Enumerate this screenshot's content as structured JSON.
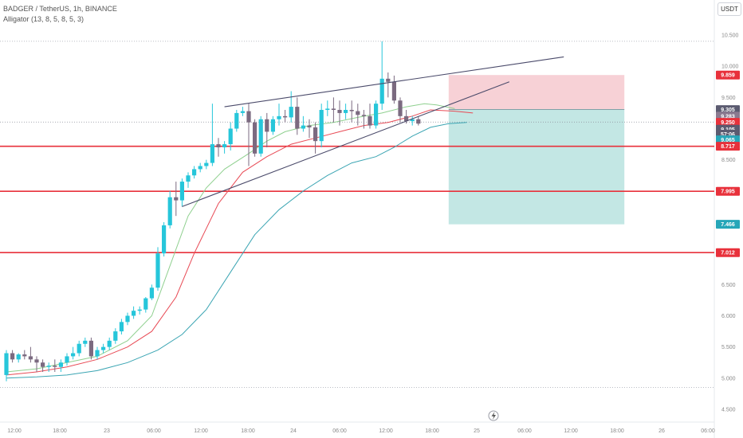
{
  "header": {
    "symbol_line": "BADGER / TetherUS, 1h, BINANCE",
    "indicator_line": "Alligator (13, 8, 5, 8, 5, 3)",
    "currency_button": "USDT"
  },
  "colors": {
    "up": "#26c6da",
    "down": "#7b6a80",
    "level_line": "#e8313b",
    "trend_line": "#4a4a6a",
    "jaw": "#3ba5b3",
    "teeth": "#e84a55",
    "lips": "#8fd08f",
    "stop_zone": "#f6c9cf",
    "target_zone": "#b9e3df"
  },
  "chart_data": {
    "type": "candlestick",
    "title": "BADGER / TetherUS, 1h, BINANCE",
    "y_axis_range": [
      4.5,
      10.5
    ],
    "y_ticks": [
      "10.500",
      "10.000",
      "9.500",
      "9.000",
      "8.500",
      "8.000",
      "7.500",
      "7.000",
      "6.500",
      "6.000",
      "5.500",
      "5.000",
      "4.500"
    ],
    "x_ticks": [
      "12:00",
      "18:00",
      "23",
      "06:00",
      "12:00",
      "18:00",
      "24",
      "06:00",
      "12:00",
      "18:00",
      "25",
      "06:00",
      "12:00",
      "18:00",
      "26",
      "06:00"
    ],
    "candles": [
      [
        5.05,
        5.45,
        5.4,
        4.95
      ],
      [
        5.4,
        5.45,
        5.3,
        5.25
      ],
      [
        5.3,
        5.4,
        5.38,
        5.25
      ],
      [
        5.38,
        5.45,
        5.35,
        5.3
      ],
      [
        5.35,
        5.5,
        5.3,
        5.25
      ],
      [
        5.3,
        5.35,
        5.25,
        5.1
      ],
      [
        5.25,
        5.3,
        5.18,
        5.1
      ],
      [
        5.18,
        5.25,
        5.2,
        5.1
      ],
      [
        5.2,
        5.3,
        5.18,
        5.1
      ],
      [
        5.18,
        5.3,
        5.25,
        5.1
      ],
      [
        5.25,
        5.4,
        5.35,
        5.2
      ],
      [
        5.35,
        5.5,
        5.4,
        5.3
      ],
      [
        5.4,
        5.6,
        5.55,
        5.35
      ],
      [
        5.55,
        5.65,
        5.6,
        5.5
      ],
      [
        5.6,
        5.65,
        5.35,
        5.3
      ],
      [
        5.35,
        5.5,
        5.45,
        5.3
      ],
      [
        5.45,
        5.55,
        5.5,
        5.4
      ],
      [
        5.5,
        5.65,
        5.6,
        5.45
      ],
      [
        5.6,
        5.8,
        5.75,
        5.55
      ],
      [
        5.75,
        5.95,
        5.9,
        5.7
      ],
      [
        5.9,
        6.05,
        6.0,
        5.85
      ],
      [
        6.0,
        6.15,
        6.08,
        5.95
      ],
      [
        6.08,
        6.15,
        6.1,
        6.02
      ],
      [
        6.1,
        6.3,
        6.28,
        6.05
      ],
      [
        6.28,
        6.5,
        6.45,
        6.25
      ],
      [
        6.45,
        7.1,
        7.0,
        6.4
      ],
      [
        7.0,
        7.5,
        7.45,
        6.95
      ],
      [
        7.45,
        8.0,
        7.9,
        7.4
      ],
      [
        7.9,
        8.15,
        7.85,
        7.6
      ],
      [
        7.85,
        8.2,
        8.15,
        7.75
      ],
      [
        8.15,
        8.3,
        8.25,
        8.05
      ],
      [
        8.25,
        8.4,
        8.35,
        8.2
      ],
      [
        8.35,
        8.45,
        8.4,
        8.3
      ],
      [
        8.4,
        8.5,
        8.45,
        8.35
      ],
      [
        8.45,
        9.4,
        8.75,
        8.4
      ],
      [
        8.75,
        8.85,
        8.7,
        8.55
      ],
      [
        8.7,
        8.8,
        8.75,
        8.6
      ],
      [
        8.75,
        9.1,
        9.0,
        8.65
      ],
      [
        9.0,
        9.3,
        9.25,
        8.95
      ],
      [
        9.25,
        9.35,
        9.28,
        9.2
      ],
      [
        9.28,
        9.4,
        9.1,
        8.4
      ],
      [
        9.1,
        9.15,
        8.6,
        8.55
      ],
      [
        8.6,
        9.2,
        9.15,
        8.55
      ],
      [
        9.15,
        9.25,
        8.95,
        8.7
      ],
      [
        8.95,
        9.2,
        9.15,
        8.9
      ],
      [
        9.15,
        9.4,
        9.2,
        9.05
      ],
      [
        9.2,
        9.3,
        9.18,
        9.1
      ],
      [
        9.18,
        9.6,
        9.35,
        9.1
      ],
      [
        9.35,
        9.5,
        9.0,
        8.9
      ],
      [
        9.0,
        9.2,
        9.05,
        8.95
      ],
      [
        9.05,
        9.15,
        9.02,
        8.85
      ],
      [
        9.02,
        9.1,
        8.8,
        8.6
      ],
      [
        8.8,
        9.4,
        9.3,
        8.7
      ],
      [
        9.3,
        9.45,
        9.32,
        9.2
      ],
      [
        9.32,
        9.5,
        9.3,
        9.1
      ],
      [
        9.3,
        9.45,
        9.25,
        9.05
      ],
      [
        9.25,
        9.4,
        9.3,
        9.15
      ],
      [
        9.3,
        9.45,
        9.28,
        9.1
      ],
      [
        9.28,
        9.4,
        9.22,
        9.05
      ],
      [
        9.22,
        9.3,
        9.2,
        9.0
      ],
      [
        9.2,
        9.4,
        9.05,
        9.0
      ],
      [
        9.05,
        9.45,
        9.4,
        9.0
      ],
      [
        9.4,
        10.4,
        9.8,
        9.3
      ],
      [
        9.8,
        9.9,
        9.75,
        9.5
      ],
      [
        9.75,
        9.85,
        9.45,
        9.4
      ],
      [
        9.45,
        9.5,
        9.2,
        9.1
      ],
      [
        9.2,
        9.3,
        9.12,
        9.08
      ],
      [
        9.12,
        9.2,
        9.15,
        9.05
      ],
      [
        9.15,
        9.2,
        9.08,
        9.05
      ]
    ],
    "alligator": {
      "jaw": [
        [
          0,
          5.0
        ],
        [
          5,
          5.02
        ],
        [
          10,
          5.05
        ],
        [
          15,
          5.12
        ],
        [
          20,
          5.25
        ],
        [
          25,
          5.45
        ],
        [
          29,
          5.7
        ],
        [
          33,
          6.1
        ],
        [
          37,
          6.7
        ],
        [
          41,
          7.3
        ],
        [
          45,
          7.7
        ],
        [
          49,
          8.0
        ],
        [
          53,
          8.25
        ],
        [
          57,
          8.45
        ],
        [
          61,
          8.55
        ],
        [
          64,
          8.7
        ],
        [
          67,
          8.88
        ],
        [
          70,
          9.02
        ],
        [
          73,
          9.08
        ],
        [
          76,
          9.1
        ]
      ],
      "teeth": [
        [
          0,
          5.05
        ],
        [
          5,
          5.1
        ],
        [
          10,
          5.18
        ],
        [
          15,
          5.3
        ],
        [
          20,
          5.5
        ],
        [
          24,
          5.75
        ],
        [
          28,
          6.3
        ],
        [
          31,
          7.0
        ],
        [
          35,
          7.8
        ],
        [
          39,
          8.3
        ],
        [
          43,
          8.55
        ],
        [
          47,
          8.75
        ],
        [
          51,
          8.85
        ],
        [
          55,
          8.95
        ],
        [
          59,
          9.05
        ],
        [
          63,
          9.1
        ],
        [
          67,
          9.2
        ],
        [
          70,
          9.3
        ],
        [
          74,
          9.28
        ],
        [
          77,
          9.25
        ]
      ],
      "lips": [
        [
          0,
          5.1
        ],
        [
          5,
          5.15
        ],
        [
          10,
          5.25
        ],
        [
          15,
          5.35
        ],
        [
          20,
          5.6
        ],
        [
          24,
          6.0
        ],
        [
          27,
          6.8
        ],
        [
          30,
          7.6
        ],
        [
          33,
          8.05
        ],
        [
          36,
          8.35
        ],
        [
          40,
          8.6
        ],
        [
          43,
          8.8
        ],
        [
          46,
          8.95
        ],
        [
          50,
          9.05
        ],
        [
          54,
          9.1
        ],
        [
          58,
          9.18
        ],
        [
          62,
          9.25
        ],
        [
          66,
          9.35
        ],
        [
          69,
          9.4
        ],
        [
          71,
          9.38
        ],
        [
          74,
          9.32
        ]
      ]
    },
    "horizontal_levels": [
      8.717,
      7.995,
      7.012
    ],
    "trend_lines": [
      {
        "from": [
          36,
          9.35
        ],
        "to": [
          92,
          10.15
        ]
      },
      {
        "from": [
          29,
          7.75
        ],
        "to": [
          83,
          9.75
        ]
      }
    ],
    "position": {
      "entry": 9.305,
      "stop": 9.859,
      "target": 7.466,
      "start_bar": 73,
      "end_bar": 102
    },
    "current_price": 9.105,
    "upper_dotted_level": 10.4,
    "lower_dotted_level": 4.85,
    "price_tags": [
      {
        "label": "9.859",
        "value": 9.859,
        "bg": "#e8313b",
        "fg": "#ffffff"
      },
      {
        "label": "9.305",
        "value": 9.305,
        "bg": "#5b5b70",
        "fg": "#ffffff"
      },
      {
        "label": "9.283",
        "value": 9.2,
        "bg": "#8a7a90",
        "fg": "#ffffff"
      },
      {
        "label": "9.250",
        "value": 9.1,
        "bg": "#e8313b",
        "fg": "#ffffff"
      },
      {
        "label": "9.105",
        "value": 8.99,
        "bg": "#5b5b70",
        "fg": "#ffffff"
      },
      {
        "label": "57:06",
        "value": 8.91,
        "bg": "#5b5b70",
        "fg": "#ffffff"
      },
      {
        "label": "9.065",
        "value": 8.82,
        "bg": "#26a6b8",
        "fg": "#ffffff"
      },
      {
        "label": "8.717",
        "value": 8.717,
        "bg": "#e8313b",
        "fg": "#ffffff"
      },
      {
        "label": "7.995",
        "value": 7.995,
        "bg": "#e8313b",
        "fg": "#ffffff"
      },
      {
        "label": "7.466",
        "value": 7.466,
        "bg": "#26a6b8",
        "fg": "#ffffff"
      },
      {
        "label": "7.012",
        "value": 7.012,
        "bg": "#e8313b",
        "fg": "#ffffff"
      }
    ]
  }
}
